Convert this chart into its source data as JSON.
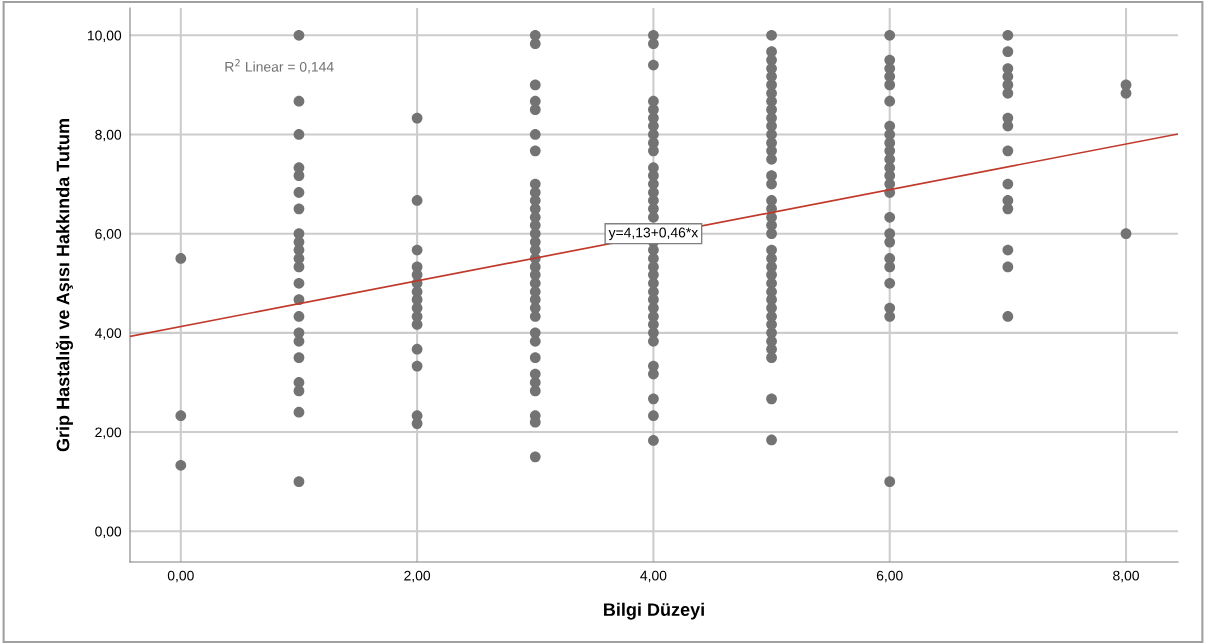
{
  "chart_data": {
    "type": "scatter",
    "xlabel": "Bilgi Düzeyi",
    "ylabel": "Grip Hastalığı ve Aşısı Hakkında Tutum",
    "xlim": [
      -0.43,
      8.44
    ],
    "ylim": [
      -0.62,
      10.55
    ],
    "xticks": [
      {
        "value": 0,
        "label": "0,00"
      },
      {
        "value": 2,
        "label": "2,00"
      },
      {
        "value": 4,
        "label": "4,00"
      },
      {
        "value": 6,
        "label": "6,00"
      },
      {
        "value": 8,
        "label": "8,00"
      }
    ],
    "yticks": [
      {
        "value": 0,
        "label": "0,00"
      },
      {
        "value": 2,
        "label": "2,00"
      },
      {
        "value": 4,
        "label": "4,00"
      },
      {
        "value": 6,
        "label": "6,00"
      },
      {
        "value": 8,
        "label": "8,00"
      },
      {
        "value": 10,
        "label": "10,00"
      }
    ],
    "grid": true,
    "marker": "circle",
    "series": [
      {
        "color": "#737373",
        "x": [
          0,
          0,
          0,
          1,
          1,
          1,
          1,
          1,
          1,
          1,
          1,
          1,
          1,
          1,
          1,
          1,
          1,
          1,
          1,
          1,
          1,
          1,
          1,
          1,
          1,
          2,
          2,
          2,
          2,
          2,
          2,
          2,
          2,
          2,
          2,
          2,
          2,
          2,
          2,
          2,
          3,
          3,
          3,
          3,
          3,
          3,
          3,
          3,
          3,
          3,
          3,
          3,
          3,
          3,
          3,
          3,
          3,
          3,
          3,
          3,
          3,
          3,
          3,
          3,
          3,
          3,
          3,
          3,
          3,
          3,
          3,
          3,
          3,
          4,
          4,
          4,
          4,
          4,
          4,
          4,
          4,
          4,
          4,
          4,
          4,
          4,
          4,
          4,
          4,
          4,
          4,
          4,
          4,
          4,
          4,
          4,
          4,
          4,
          4,
          4,
          4,
          4,
          4,
          4,
          4,
          4,
          4,
          4,
          5,
          5,
          5,
          5,
          5,
          5,
          5,
          5,
          5,
          5,
          5,
          5,
          5,
          5,
          5,
          5,
          5,
          5,
          5,
          5,
          5,
          5,
          5,
          5,
          5,
          5,
          5,
          5,
          5,
          5,
          5,
          5,
          5,
          5,
          5,
          5,
          5,
          5,
          6,
          6,
          6,
          6,
          6,
          6,
          6,
          6,
          6,
          6,
          6,
          6,
          6,
          6,
          6,
          6,
          6,
          6,
          6,
          6,
          6,
          6,
          6,
          6,
          7,
          7,
          7,
          7,
          7,
          7,
          7,
          7,
          7,
          7,
          7,
          7,
          7,
          7,
          7,
          8,
          8,
          8
        ],
        "values": [
          5.5,
          2.33,
          1.33,
          10,
          8.67,
          8,
          7.33,
          7.17,
          6.83,
          6.5,
          6,
          5.83,
          5.67,
          5.5,
          5.33,
          5,
          4.67,
          4.33,
          4,
          3.83,
          3.5,
          3,
          2.83,
          2.4,
          1,
          8.33,
          6.67,
          5.67,
          5.33,
          5.17,
          5,
          4.83,
          4.67,
          4.5,
          4.33,
          4.17,
          3.67,
          3.33,
          2.33,
          2.17,
          10,
          9.83,
          9,
          8.67,
          8.5,
          8,
          7.67,
          7,
          6.83,
          6.67,
          6.5,
          6.33,
          6.17,
          6,
          5.83,
          5.67,
          5.5,
          5.33,
          5.17,
          5,
          4.83,
          4.67,
          4.5,
          4.33,
          4,
          3.83,
          3.5,
          3.17,
          3,
          2.83,
          2.33,
          2.2,
          1.5,
          10,
          9.83,
          9.4,
          8.67,
          8.5,
          8.33,
          8.17,
          8,
          7.83,
          7.67,
          7.33,
          7.17,
          7,
          6.83,
          6.67,
          6.5,
          6.33,
          5.83,
          5.67,
          5.5,
          5.33,
          5.17,
          5,
          4.83,
          4.67,
          4.5,
          4.33,
          4.17,
          4,
          3.83,
          3.33,
          3.17,
          2.67,
          2.33,
          1.83,
          10,
          9.67,
          9.5,
          9.33,
          9.17,
          9,
          8.83,
          8.67,
          8.5,
          8.33,
          8.17,
          8,
          7.83,
          7.67,
          7.5,
          7.17,
          7,
          6.67,
          6.5,
          6.33,
          6.17,
          6,
          5.67,
          5.5,
          5.33,
          5.17,
          5,
          4.83,
          4.67,
          4.5,
          4.33,
          4.17,
          4,
          3.83,
          3.67,
          3.5,
          2.67,
          1.84,
          10,
          9.5,
          9.33,
          9.17,
          9,
          8.67,
          8.17,
          8,
          7.83,
          7.67,
          7.5,
          7.33,
          7.17,
          7,
          6.83,
          6.33,
          6,
          5.83,
          5.5,
          5.33,
          5,
          4.5,
          4.33,
          1,
          10,
          9.67,
          9.33,
          9.17,
          9,
          8.83,
          8.33,
          8.17,
          7.67,
          7,
          6.67,
          6.5,
          5.67,
          5.33,
          4.33,
          9,
          8.83,
          6
        ]
      },
      {
        "type": "line",
        "marker": "none",
        "color": "#c0392b",
        "x": [
          -0.43,
          8.44
        ],
        "values": [
          3.93,
          8.01
        ]
      }
    ],
    "annotations": [
      "R$^{2}$ Linear = 0,144",
      {
        "text": "y=4,13+0,46*x",
        "x": 4.0,
        "y": 6.0
      }
    ]
  }
}
